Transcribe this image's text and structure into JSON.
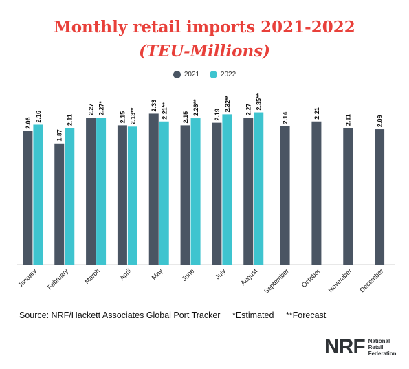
{
  "chart_data": {
    "type": "bar",
    "title": "Monthly retail imports 2021-2022",
    "subtitle": "(TEU-Millions)",
    "categories": [
      "January",
      "February",
      "March",
      "April",
      "May",
      "June",
      "July",
      "August",
      "September",
      "October",
      "November",
      "December"
    ],
    "series": [
      {
        "name": "2021",
        "color": "#4a5563",
        "values": [
          2.06,
          1.87,
          2.27,
          2.15,
          2.33,
          2.15,
          2.19,
          2.27,
          2.14,
          2.21,
          2.11,
          2.09
        ],
        "labels": [
          "2.06",
          "1.87",
          "2.27",
          "2.15",
          "2.33",
          "2.15",
          "2.19",
          "2.27",
          "2.14",
          "2.21",
          "2.11",
          "2.09"
        ]
      },
      {
        "name": "2022",
        "color": "#3ec4cf",
        "values": [
          2.16,
          2.11,
          2.27,
          2.13,
          2.21,
          2.26,
          2.32,
          2.35,
          null,
          null,
          null,
          null
        ],
        "labels": [
          "2.16",
          "2.11",
          "2.27*",
          "2.13**",
          "2.21**",
          "2.26**",
          "2.32**",
          "2.35**",
          null,
          null,
          null,
          null
        ]
      }
    ],
    "ylim": [
      0,
      2.6
    ],
    "xlabel": "",
    "ylabel": "",
    "legend_position": "top-center",
    "grid": false
  },
  "footer": {
    "source": "Source: NRF/Hackett Associates Global Port Tracker",
    "estimated": "*Estimated",
    "forecast": "**Forecast"
  },
  "logo": {
    "mark": "NRF",
    "line1": "National",
    "line2": "Retail",
    "line3": "Federation"
  }
}
